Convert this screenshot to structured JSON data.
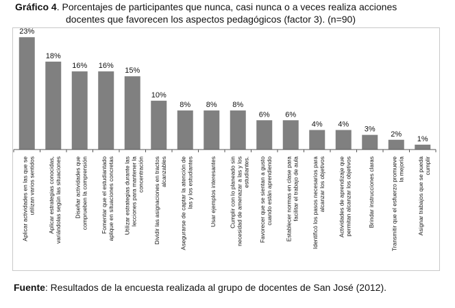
{
  "header": {
    "title_bold": "Gráfico 4",
    "title_rest": ". Porcentajes de participantes que nunca, casi nunca o a veces realiza acciones",
    "title_line2": "docentes que favorecen los aspectos pedagógicos (factor 3). (n=90)"
  },
  "footer": {
    "source_bold": "Fuente",
    "source_rest": ": Resultados de la encuesta realizada al grupo de docentes de San José  (2012)."
  },
  "colors": {
    "bar": "#808080",
    "axis": "#555555",
    "text": "#111111",
    "frame": "#c8c8c8"
  },
  "chart_data": {
    "type": "bar",
    "title": "",
    "xlabel": "",
    "ylabel": "",
    "ylim": [
      0,
      25
    ],
    "grid": false,
    "legend": "none",
    "categories": [
      [
        "Aplicar actividades en las que se",
        "utilizan varios sentidos"
      ],
      [
        "Aplicar estrategias conocidas,",
        "variándolas según las situaciones"
      ],
      [
        "Diseñar actividades que",
        "comprueben la comprensión"
      ],
      [
        "Fomentar que el estudiantado",
        "aplique en situaciones concretas"
      ],
      [
        "Utilizar estrategias durante las",
        "lecciones para mantener la",
        "concentración"
      ],
      [
        "Dividir las asignaciones en tractos",
        "alcanzables"
      ],
      [
        "Asegurarse de captar la atención de",
        "las y los estudiantes"
      ],
      [
        "Usar ejemplos interesantes"
      ],
      [
        "Cumplir con lo planeado sin",
        "necesidad de amenazar a las y los",
        "estudiantes."
      ],
      [
        "Favorecer que se sientan a gusto",
        "cuando están aprendiendo"
      ],
      [
        "Establecer normas en clase para",
        "facilitar el trabajo de aula"
      ],
      [
        "Identificó los pasos necesarios para",
        "alcanzar los objetivos"
      ],
      [
        "Actividades de aprendizaje que",
        "permitan alcanzar los objetivos"
      ],
      [
        "Brindar instrucciones claras"
      ],
      [
        "Transmitir que el esfuerzo promueve",
        "la mejoría"
      ],
      [
        "Asignar trabajos que se pueda",
        "cumplir"
      ]
    ],
    "values": [
      23,
      18,
      16,
      16,
      15,
      10,
      8,
      8,
      8,
      6,
      6,
      4,
      4,
      3,
      2,
      1
    ],
    "value_labels": [
      "23%",
      "18%",
      "16%",
      "16%",
      "15%",
      "10%",
      "8%",
      "8%",
      "8%",
      "6%",
      "6%",
      "4%",
      "4%",
      "3%",
      "2%",
      "1%"
    ]
  }
}
